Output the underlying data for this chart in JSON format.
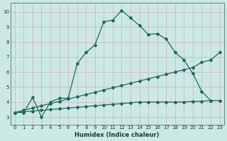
{
  "xlabel": "Humidex (Indice chaleur)",
  "bg_color": "#cce8e4",
  "line_color": "#1a6b5e",
  "grid_major_color": "#f0c0c0",
  "grid_minor_color": "#d4e8e4",
  "xlim": [
    -0.5,
    23.5
  ],
  "ylim": [
    2.5,
    10.6
  ],
  "xticks": [
    0,
    1,
    2,
    3,
    4,
    5,
    6,
    7,
    8,
    9,
    10,
    11,
    12,
    13,
    14,
    15,
    16,
    17,
    18,
    19,
    20,
    21,
    22,
    23
  ],
  "yticks": [
    3,
    4,
    5,
    6,
    7,
    8,
    9,
    10
  ],
  "line1_x": [
    0,
    1,
    2,
    3,
    4,
    5,
    6,
    7,
    8,
    9,
    10,
    11,
    12,
    13,
    14,
    15,
    16,
    17,
    18,
    19,
    20,
    21,
    22
  ],
  "line1_y": [
    3.3,
    3.3,
    4.3,
    3.0,
    4.0,
    4.25,
    4.25,
    6.55,
    7.3,
    7.8,
    9.35,
    9.45,
    10.1,
    9.6,
    9.1,
    8.5,
    8.55,
    8.2,
    7.3,
    6.8,
    5.9,
    4.7,
    4.1
  ],
  "line2_x": [
    0,
    1,
    2,
    3,
    4,
    5,
    6,
    7,
    8,
    9,
    10,
    11,
    12,
    13,
    14,
    15,
    16,
    17,
    18,
    19,
    20,
    21,
    22,
    23
  ],
  "line2_y": [
    3.3,
    3.45,
    3.6,
    3.75,
    3.9,
    4.05,
    4.2,
    4.35,
    4.5,
    4.65,
    4.8,
    4.95,
    5.1,
    5.25,
    5.4,
    5.55,
    5.7,
    5.85,
    6.0,
    6.15,
    6.3,
    6.65,
    6.8,
    7.3
  ],
  "line3_x": [
    0,
    1,
    2,
    3,
    4,
    5,
    6,
    7,
    8,
    9,
    10,
    11,
    12,
    13,
    14,
    15,
    16,
    17,
    18,
    19,
    20,
    21,
    22,
    23
  ],
  "line3_y": [
    3.3,
    3.35,
    3.4,
    3.45,
    3.5,
    3.55,
    3.6,
    3.65,
    3.7,
    3.75,
    3.8,
    3.85,
    3.9,
    3.95,
    4.0,
    4.0,
    4.0,
    4.0,
    4.0,
    4.0,
    4.05,
    4.05,
    4.1,
    4.1
  ]
}
